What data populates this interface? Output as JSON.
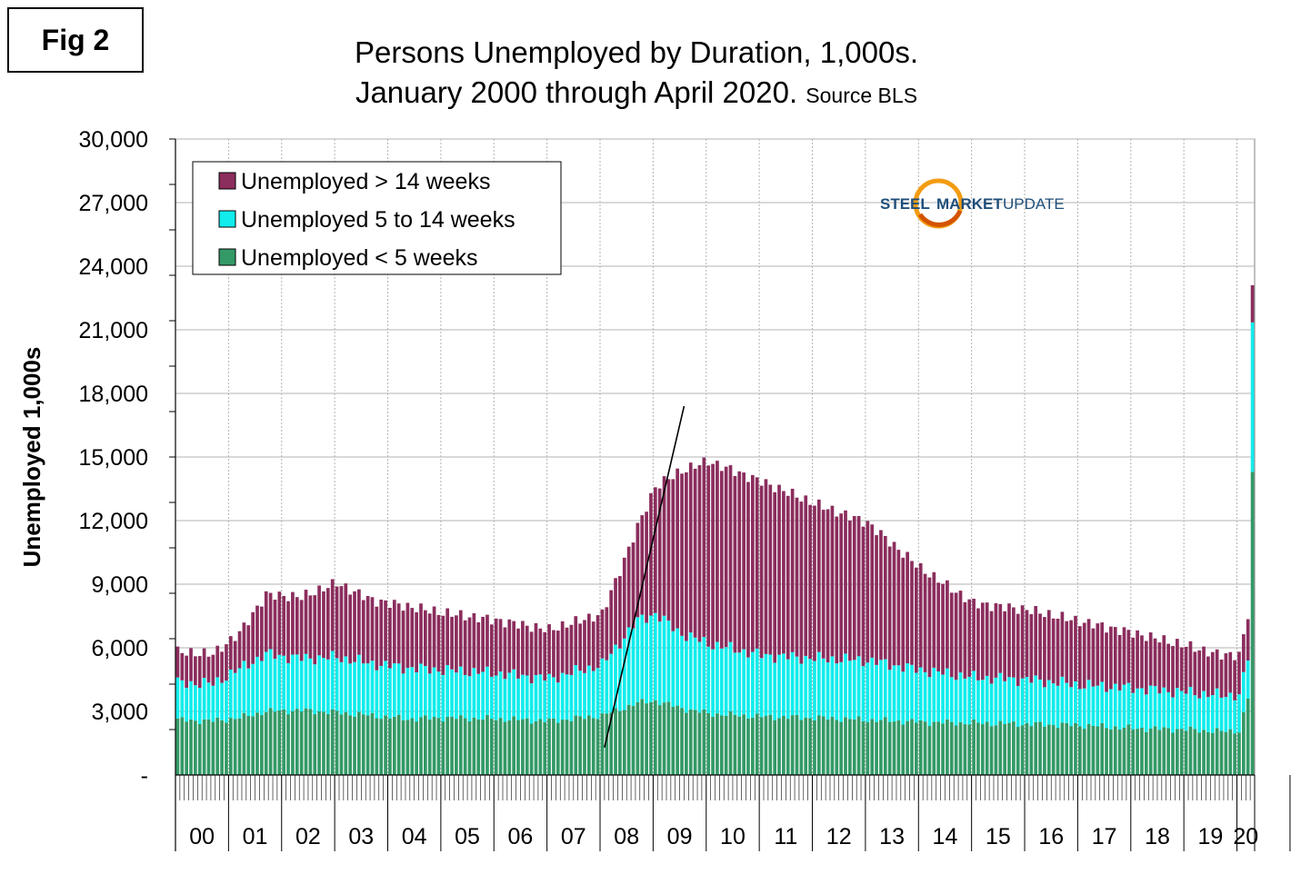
{
  "figure_label": "Fig 2",
  "title_line1": "Persons Unemployed by Duration, 1,000s.",
  "title_line2": "January 2000 through April 2020.",
  "source": "Source BLS",
  "logo": {
    "word1": "STEEL",
    "word2": "MARKET",
    "word3": "UPDATE"
  },
  "colors": {
    "long": "#8b2d5d",
    "mid": "#12ecec",
    "short": "#339966",
    "grid": "#b3b3b3",
    "trend": "#000000"
  },
  "chart_data": {
    "type": "bar",
    "stacked": true,
    "title": "Persons Unemployed by Duration, 1,000s.",
    "xlabel": "",
    "ylabel": "Unemployed 1,000s",
    "ylim": [
      0,
      30000
    ],
    "y_ticks": [
      0,
      3000,
      6000,
      9000,
      12000,
      15000,
      18000,
      21000,
      24000,
      27000,
      30000
    ],
    "y_tick_labels": [
      "-",
      "3,000",
      "6,000",
      "9,000",
      "12,000",
      "15,000",
      "18,000",
      "21,000",
      "24,000",
      "27,000",
      "30,000"
    ],
    "year_labels": [
      "00",
      "01",
      "02",
      "03",
      "04",
      "05",
      "06",
      "07",
      "08",
      "09",
      "10",
      "11",
      "12",
      "13",
      "14",
      "15",
      "16",
      "17",
      "18",
      "19",
      "20"
    ],
    "legend_position": "top-left",
    "series": [
      {
        "key": "short",
        "name": "Unemployed < 5 weeks",
        "anchors": [
          [
            0,
            2600
          ],
          [
            8,
            2550
          ],
          [
            14,
            2700
          ],
          [
            20,
            3000
          ],
          [
            28,
            3050
          ],
          [
            36,
            2950
          ],
          [
            44,
            2800
          ],
          [
            52,
            2650
          ],
          [
            60,
            2700
          ],
          [
            72,
            2650
          ],
          [
            84,
            2550
          ],
          [
            96,
            2800
          ],
          [
            104,
            3400
          ],
          [
            108,
            3500
          ],
          [
            114,
            3150
          ],
          [
            120,
            2900
          ],
          [
            132,
            2750
          ],
          [
            144,
            2700
          ],
          [
            156,
            2600
          ],
          [
            168,
            2500
          ],
          [
            180,
            2450
          ],
          [
            192,
            2400
          ],
          [
            204,
            2350
          ],
          [
            216,
            2200
          ],
          [
            228,
            2150
          ],
          [
            236,
            2050
          ],
          [
            240,
            2100
          ],
          [
            242,
            3600
          ],
          [
            243,
            14300
          ]
        ]
      },
      {
        "key": "mid",
        "name": "Unemployed 5 to 14 weeks",
        "anchors": [
          [
            0,
            1750
          ],
          [
            8,
            1750
          ],
          [
            14,
            2300
          ],
          [
            20,
            2700
          ],
          [
            28,
            2450
          ],
          [
            36,
            2600
          ],
          [
            44,
            2450
          ],
          [
            52,
            2400
          ],
          [
            60,
            2250
          ],
          [
            72,
            2150
          ],
          [
            84,
            2000
          ],
          [
            96,
            2400
          ],
          [
            104,
            3900
          ],
          [
            108,
            4100
          ],
          [
            114,
            3500
          ],
          [
            120,
            3300
          ],
          [
            132,
            2900
          ],
          [
            144,
            2800
          ],
          [
            156,
            2800
          ],
          [
            168,
            2450
          ],
          [
            180,
            2150
          ],
          [
            192,
            2100
          ],
          [
            204,
            1900
          ],
          [
            216,
            1900
          ],
          [
            228,
            1750
          ],
          [
            236,
            1700
          ],
          [
            240,
            1700
          ],
          [
            242,
            1800
          ],
          [
            243,
            7050
          ]
        ]
      },
      {
        "key": "long",
        "name": "Unemployed > 14 weeks",
        "anchors": [
          [
            0,
            1450
          ],
          [
            8,
            1400
          ],
          [
            14,
            1700
          ],
          [
            20,
            2800
          ],
          [
            28,
            2900
          ],
          [
            36,
            3500
          ],
          [
            44,
            3000
          ],
          [
            52,
            2900
          ],
          [
            60,
            2700
          ],
          [
            72,
            2500
          ],
          [
            84,
            2300
          ],
          [
            96,
            2400
          ],
          [
            104,
            4400
          ],
          [
            108,
            6000
          ],
          [
            114,
            7700
          ],
          [
            120,
            8600
          ],
          [
            132,
            8200
          ],
          [
            144,
            7300
          ],
          [
            156,
            6500
          ],
          [
            168,
            4800
          ],
          [
            180,
            3500
          ],
          [
            192,
            3300
          ],
          [
            204,
            3000
          ],
          [
            216,
            2600
          ],
          [
            228,
            2200
          ],
          [
            236,
            1900
          ],
          [
            240,
            1900
          ],
          [
            242,
            1950
          ],
          [
            243,
            1750
          ]
        ]
      }
    ],
    "trend_line": {
      "start": [
        97,
        1300
      ],
      "end": [
        115,
        17400
      ]
    },
    "months": 244,
    "start": "2000-01",
    "end": "2020-04"
  }
}
